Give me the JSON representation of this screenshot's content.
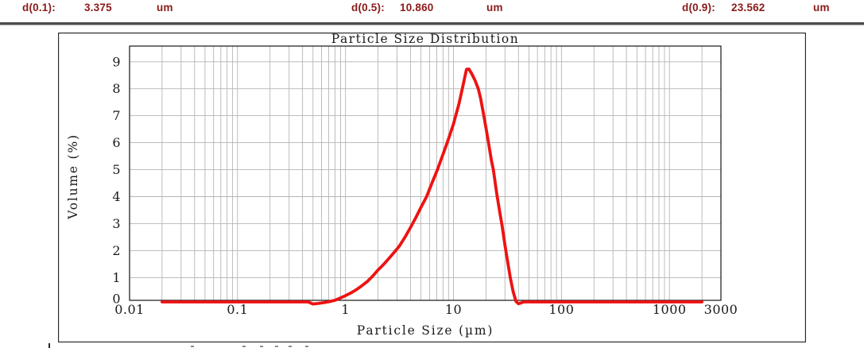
{
  "header": {
    "accent_text_color": "#8B1A1A",
    "items": [
      {
        "label": "d(0.1):",
        "value": "3.375",
        "unit": "um"
      },
      {
        "label": "d(0.5):",
        "value": "10.860",
        "unit": "um"
      },
      {
        "label": "d(0.9):",
        "value": "23.562",
        "unit": "um"
      }
    ]
  },
  "chart_data": {
    "type": "line",
    "title": "Particle Size Distribution",
    "xlabel": "Particle Size (µm)",
    "ylabel": "Volume (%)",
    "x_scale": "log",
    "xlim": [
      0.01,
      3000
    ],
    "ylim": [
      0,
      9
    ],
    "x_ticks": [
      0.01,
      0.1,
      1,
      10,
      100,
      1000,
      3000
    ],
    "x_tick_labels": [
      "0.01",
      "0.1",
      "1",
      "10",
      "100",
      "1000",
      "3000"
    ],
    "y_ticks": [
      0,
      1,
      2,
      3,
      4,
      5,
      6,
      7,
      8,
      9
    ],
    "grid": true,
    "legend_position": "none",
    "line_color": "#EE1212",
    "grid_color": "#b5b5b5",
    "border_color": "#161616",
    "series": [
      {
        "name": "Volume (%)",
        "points": [
          [
            0.02,
            0
          ],
          [
            0.45,
            0
          ],
          [
            0.5,
            0.02
          ],
          [
            0.56,
            0.04
          ],
          [
            0.63,
            0.07
          ],
          [
            0.71,
            0.11
          ],
          [
            0.8,
            0.16
          ],
          [
            0.89,
            0.24
          ],
          [
            1.0,
            0.33
          ],
          [
            1.12,
            0.43
          ],
          [
            1.26,
            0.55
          ],
          [
            1.41,
            0.69
          ],
          [
            1.59,
            0.85
          ],
          [
            1.78,
            1.05
          ],
          [
            2.0,
            1.28
          ],
          [
            2.24,
            1.48
          ],
          [
            2.51,
            1.7
          ],
          [
            2.82,
            1.93
          ],
          [
            3.17,
            2.18
          ],
          [
            3.56,
            2.5
          ],
          [
            3.99,
            2.85
          ],
          [
            4.48,
            3.22
          ],
          [
            5.02,
            3.62
          ],
          [
            5.64,
            4.0
          ],
          [
            6.32,
            4.5
          ],
          [
            7.1,
            5.0
          ],
          [
            7.96,
            5.55
          ],
          [
            8.93,
            6.1
          ],
          [
            10.02,
            6.7
          ],
          [
            11.25,
            7.45
          ],
          [
            12.62,
            8.35
          ],
          [
            13.2,
            8.72
          ],
          [
            13.9,
            8.73
          ],
          [
            14.8,
            8.55
          ],
          [
            15.89,
            8.3
          ],
          [
            16.95,
            8.0
          ],
          [
            17.83,
            7.65
          ],
          [
            19.0,
            7.05
          ],
          [
            20.0,
            6.55
          ],
          [
            21.0,
            6.05
          ],
          [
            22.44,
            5.35
          ],
          [
            23.4,
            5.0
          ],
          [
            25.18,
            4.1
          ],
          [
            26.9,
            3.4
          ],
          [
            28.25,
            2.9
          ],
          [
            30.0,
            2.2
          ],
          [
            31.7,
            1.6
          ],
          [
            33.6,
            1.0
          ],
          [
            35.57,
            0.5
          ],
          [
            37.9,
            0.12
          ],
          [
            39.91,
            0.03
          ],
          [
            44.77,
            0
          ],
          [
            2000,
            0
          ]
        ]
      }
    ]
  }
}
